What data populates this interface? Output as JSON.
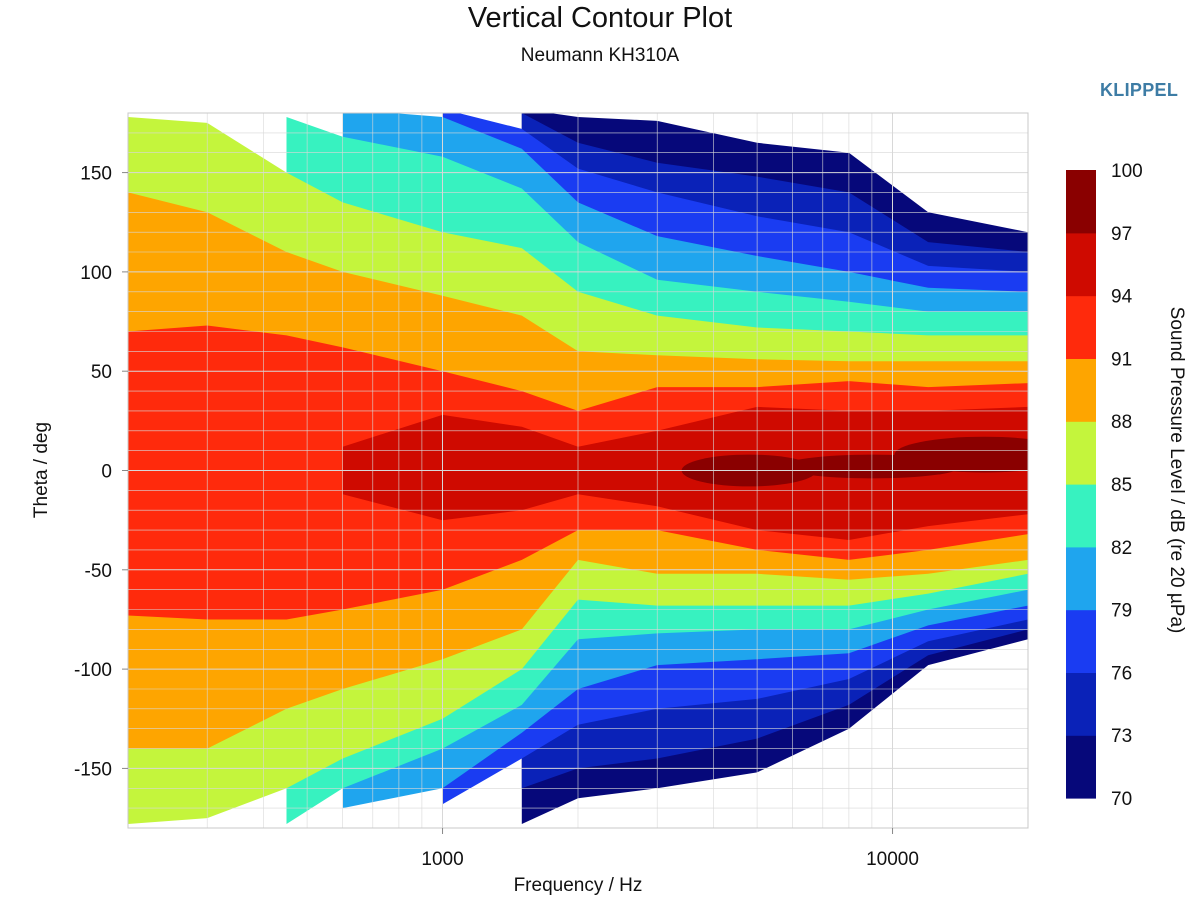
{
  "header": {
    "title": "Vertical Contour Plot",
    "subtitle": "Neumann KH310A",
    "brand": "KLIPPEL"
  },
  "colors": {
    "levels": [
      "#06087a",
      "#0a22b8",
      "#1a3cf2",
      "#1fa5ee",
      "#37f2c0",
      "#c4f53c",
      "#fea500",
      "#ff2a0c",
      "#cf0a00",
      "#8a0000"
    ],
    "background": "#ffffff",
    "grid": "#d8d8d8",
    "brand": "#3d7ca5"
  },
  "chart_data": {
    "type": "heatmap",
    "title": "Vertical Contour Plot",
    "subtitle": "Neumann KH310A",
    "xlabel": "Frequency / Hz",
    "ylabel": "Theta / deg",
    "x_scale": "log",
    "xlim": [
      200,
      20000
    ],
    "ylim": [
      -180,
      180
    ],
    "x_tick_labels": [
      {
        "value": 1000,
        "label": "1000"
      },
      {
        "value": 10000,
        "label": "10000"
      }
    ],
    "y_tick_labels": [
      {
        "value": 150,
        "label": "150"
      },
      {
        "value": 100,
        "label": "100"
      },
      {
        "value": 50,
        "label": "50"
      },
      {
        "value": 0,
        "label": "0"
      },
      {
        "value": -50,
        "label": "-50"
      },
      {
        "value": -100,
        "label": "-100"
      },
      {
        "value": -150,
        "label": "-150"
      }
    ],
    "colorbar": {
      "label": "Sound Pressure Level / dB (re 20 µPa)",
      "ticks": [
        "100",
        "97",
        "94",
        "91",
        "88",
        "85",
        "82",
        "79",
        "76",
        "73",
        "70"
      ],
      "min": 70,
      "max": 100,
      "step": 3
    },
    "level_boundaries": [
      {
        "frequency": 200,
        "upper": [
          null,
          null,
          null,
          null,
          null,
          178,
          140,
          70,
          null,
          null
        ],
        "lower": [
          null,
          null,
          null,
          null,
          null,
          -178,
          -140,
          -73,
          null,
          null
        ]
      },
      {
        "frequency": 300,
        "upper": [
          null,
          null,
          null,
          null,
          null,
          175,
          130,
          73,
          null,
          null
        ],
        "lower": [
          null,
          null,
          null,
          null,
          null,
          -175,
          -140,
          -75,
          null,
          null
        ]
      },
      {
        "frequency": 450,
        "upper": [
          null,
          null,
          null,
          null,
          178,
          150,
          110,
          68,
          null,
          null
        ],
        "lower": [
          null,
          null,
          null,
          null,
          -178,
          -160,
          -120,
          -75,
          null,
          null
        ]
      },
      {
        "frequency": 600,
        "upper": [
          null,
          null,
          null,
          182,
          168,
          135,
          100,
          62,
          12,
          null
        ],
        "lower": [
          null,
          null,
          null,
          -170,
          -160,
          -145,
          -110,
          -70,
          -12,
          null
        ]
      },
      {
        "frequency": 1000,
        "upper": [
          null,
          null,
          182,
          178,
          158,
          120,
          88,
          50,
          28,
          null
        ],
        "lower": [
          null,
          null,
          -168,
          -160,
          -140,
          -125,
          -95,
          -60,
          -25,
          null
        ]
      },
      {
        "frequency": 1500,
        "upper": [
          182,
          180,
          172,
          162,
          142,
          112,
          78,
          40,
          22,
          null
        ],
        "lower": [
          -178,
          -160,
          -145,
          -132,
          -118,
          -100,
          -80,
          -45,
          -20,
          null
        ]
      },
      {
        "frequency": 2000,
        "upper": [
          178,
          165,
          152,
          135,
          115,
          90,
          60,
          30,
          12,
          null
        ],
        "lower": [
          -165,
          -150,
          -128,
          -110,
          -85,
          -65,
          -45,
          -30,
          -12,
          null
        ]
      },
      {
        "frequency": 3000,
        "upper": [
          176,
          155,
          140,
          118,
          96,
          78,
          58,
          42,
          20,
          null
        ],
        "lower": [
          -160,
          -145,
          -120,
          -98,
          -82,
          -68,
          -52,
          -30,
          -18,
          null
        ]
      },
      {
        "frequency": 5000,
        "upper": [
          165,
          148,
          128,
          108,
          90,
          72,
          56,
          42,
          32,
          2
        ],
        "lower": [
          -152,
          -135,
          -115,
          -95,
          -80,
          -68,
          -52,
          -40,
          -30,
          -2
        ],
        "notch_level": 97
      },
      {
        "frequency": 8000,
        "upper": [
          160,
          140,
          120,
          100,
          85,
          70,
          55,
          45,
          30,
          null
        ],
        "lower": [
          -130,
          -118,
          -105,
          -92,
          -80,
          -68,
          -55,
          -45,
          -35,
          null
        ]
      },
      {
        "frequency": 12000,
        "upper": [
          130,
          115,
          103,
          92,
          80,
          68,
          55,
          42,
          30,
          null
        ],
        "lower": [
          -98,
          -93,
          -86,
          -78,
          -70,
          -62,
          -52,
          -40,
          -28,
          null
        ]
      },
      {
        "frequency": 20000,
        "upper": [
          120,
          110,
          100,
          90,
          80,
          68,
          55,
          44,
          32,
          null
        ],
        "lower": [
          -85,
          -80,
          -75,
          -68,
          -60,
          -52,
          -45,
          -32,
          -22,
          null
        ]
      }
    ]
  }
}
